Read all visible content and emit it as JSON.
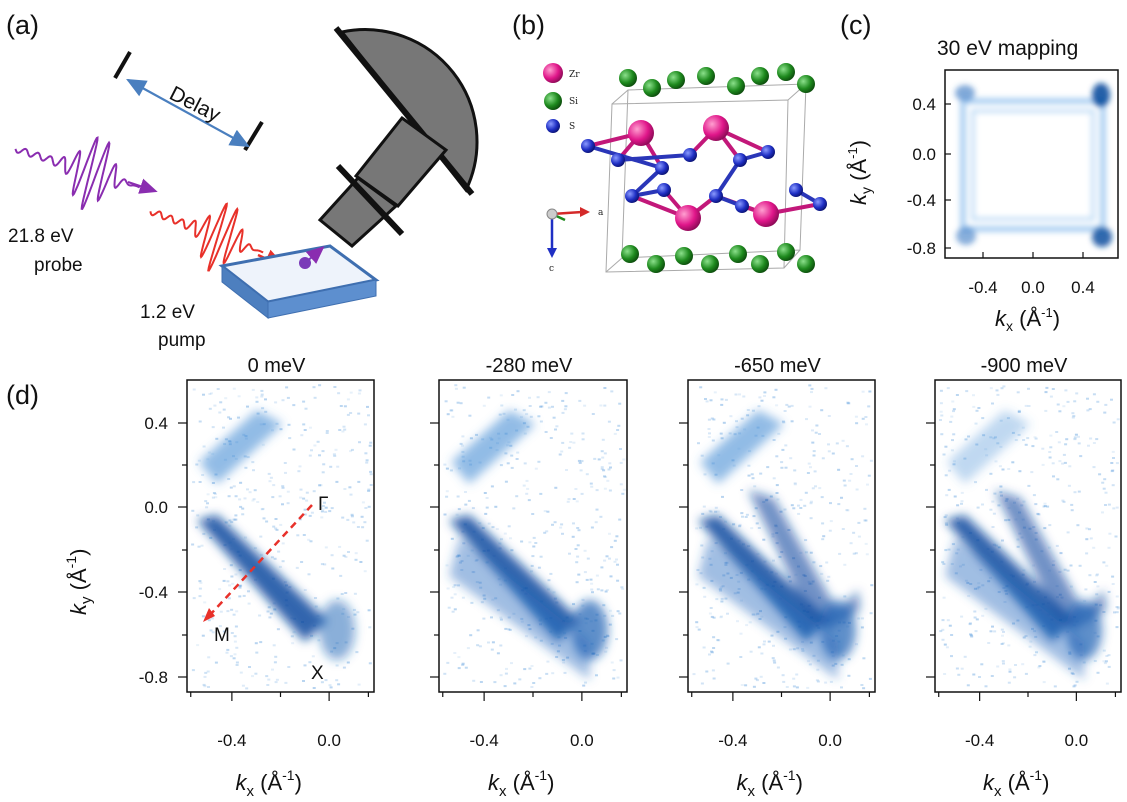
{
  "panels": {
    "a": {
      "letter": "(a)",
      "delay_label": "Delay",
      "probe_energy": "21.8  eV",
      "probe_label": "probe",
      "pump_energy": "1.2 eV",
      "pump_label": "pump",
      "colors": {
        "probe": "#8a2db0",
        "pump": "#e8312a",
        "delay_arrow": "#4a7fbf",
        "sample": "#4d7fbf",
        "analyzer": "#777777"
      }
    },
    "b": {
      "letter": "(b)",
      "legend": [
        "Zr",
        "Si",
        "S"
      ],
      "axis_a": "a",
      "axis_c": "c",
      "colors": {
        "Zr": "#e0168a",
        "Si": "#1e8a1e",
        "S": "#1f2fc4"
      }
    },
    "c": {
      "letter": "(c)",
      "title": "30 eV mapping",
      "x_ticks": [
        "-0.4",
        "0.0",
        "0.4"
      ],
      "y_ticks": [
        "0.4",
        "0.0",
        "-0.4",
        "-0.8"
      ],
      "x_label_main": "k",
      "x_label_sub": "x",
      "x_label_unit": " (Å",
      "x_label_exp": "-1",
      "x_label_close": ")",
      "y_label_main": "k",
      "y_label_sub": "y",
      "y_label_unit": " (Å",
      "y_label_exp": "-1",
      "y_label_close": ")"
    },
    "d": {
      "letter": "(d)",
      "y_ticks": [
        "0.4",
        "0.0",
        "-0.4",
        "-0.8"
      ],
      "x_ticks": [
        "-0.4",
        "0.0"
      ],
      "sub_panels": [
        {
          "title": "0 meV",
          "markers": [
            "Γ",
            "M",
            "X"
          ]
        },
        {
          "title": "-280 meV"
        },
        {
          "title": "-650 meV"
        },
        {
          "title": "-900 meV"
        }
      ],
      "x_label_main": "k",
      "x_label_sub": "x",
      "x_label_unit": " (Å",
      "x_label_exp": "-1",
      "x_label_close": ")",
      "y_label_main": "k",
      "y_label_sub": "y",
      "y_label_unit": " (Å",
      "y_label_exp": "-1",
      "y_label_close": ")",
      "cut_color": "#e8312a"
    }
  }
}
